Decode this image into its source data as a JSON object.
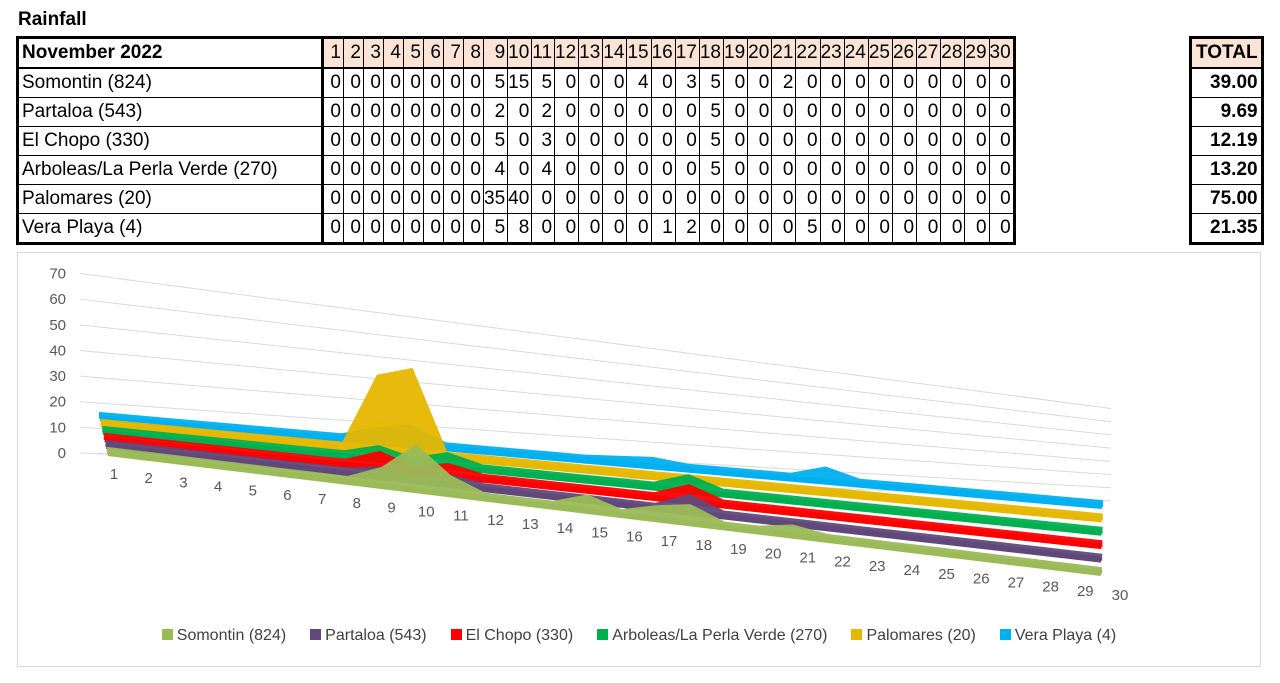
{
  "title": "Rainfall",
  "table": {
    "period": "November 2022",
    "days": [
      "1",
      "2",
      "3",
      "4",
      "5",
      "6",
      "7",
      "8",
      "9",
      "10",
      "11",
      "12",
      "13",
      "14",
      "15",
      "16",
      "17",
      "18",
      "19",
      "20",
      "21",
      "22",
      "23",
      "24",
      "25",
      "26",
      "27",
      "28",
      "29",
      "30"
    ],
    "total_header": "TOTAL",
    "rows": [
      {
        "name": "Somontin (824)",
        "values": [
          0,
          0,
          0,
          0,
          0,
          0,
          0,
          0,
          5,
          15,
          5,
          0,
          0,
          0,
          4,
          0,
          3,
          5,
          0,
          0,
          2,
          0,
          0,
          0,
          0,
          0,
          0,
          0,
          0,
          0
        ],
        "total": "39.00"
      },
      {
        "name": "Partaloa (543)",
        "values": [
          0,
          0,
          0,
          0,
          0,
          0,
          0,
          0,
          2,
          0,
          2,
          0,
          0,
          0,
          0,
          0,
          0,
          5,
          0,
          0,
          0,
          0,
          0,
          0,
          0,
          0,
          0,
          0,
          0,
          0
        ],
        "total": "9.69"
      },
      {
        "name": "El Chopo (330)",
        "values": [
          0,
          0,
          0,
          0,
          0,
          0,
          0,
          0,
          5,
          0,
          3,
          0,
          0,
          0,
          0,
          0,
          0,
          5,
          0,
          0,
          0,
          0,
          0,
          0,
          0,
          0,
          0,
          0,
          0,
          0
        ],
        "total": "12.19"
      },
      {
        "name": "Arboleas/La Perla Verde (270)",
        "values": [
          0,
          0,
          0,
          0,
          0,
          0,
          0,
          0,
          4,
          0,
          4,
          0,
          0,
          0,
          0,
          0,
          0,
          5,
          0,
          0,
          0,
          0,
          0,
          0,
          0,
          0,
          0,
          0,
          0,
          0
        ],
        "total": "13.20"
      },
      {
        "name": "Palomares (20)",
        "values": [
          0,
          0,
          0,
          0,
          0,
          0,
          0,
          0,
          35,
          40,
          0,
          0,
          0,
          0,
          0,
          0,
          0,
          0,
          0,
          0,
          0,
          0,
          0,
          0,
          0,
          0,
          0,
          0,
          0,
          0
        ],
        "total": "75.00"
      },
      {
        "name": "Vera Playa (4)",
        "values": [
          0,
          0,
          0,
          0,
          0,
          0,
          0,
          0,
          5,
          8,
          0,
          0,
          0,
          0,
          0,
          1,
          2,
          0,
          0,
          0,
          0,
          5,
          0,
          0,
          0,
          0,
          0,
          0,
          0,
          0
        ],
        "total": "21.35"
      }
    ]
  },
  "chart_data": {
    "type": "area",
    "title": "",
    "xlabel": "",
    "ylabel": "",
    "ylim": [
      0,
      70
    ],
    "yticks": [
      "0",
      "10",
      "20",
      "30",
      "40",
      "50",
      "60",
      "70"
    ],
    "categories": [
      "1",
      "2",
      "3",
      "4",
      "5",
      "6",
      "7",
      "8",
      "9",
      "10",
      "11",
      "12",
      "13",
      "14",
      "15",
      "16",
      "17",
      "18",
      "19",
      "20",
      "21",
      "22",
      "23",
      "24",
      "25",
      "26",
      "27",
      "28",
      "29",
      "30"
    ],
    "grid": true,
    "legend_position": "bottom",
    "series": [
      {
        "name": "Somontin (824)",
        "color": "#9bbb59",
        "values": [
          0,
          0,
          0,
          0,
          0,
          0,
          0,
          0,
          5,
          15,
          5,
          0,
          0,
          0,
          4,
          0,
          3,
          5,
          0,
          0,
          2,
          0,
          0,
          0,
          0,
          0,
          0,
          0,
          0,
          0
        ]
      },
      {
        "name": "Partaloa (543)",
        "color": "#60497a",
        "values": [
          0,
          0,
          0,
          0,
          0,
          0,
          0,
          0,
          2,
          0,
          2,
          0,
          0,
          0,
          0,
          0,
          0,
          5,
          0,
          0,
          0,
          0,
          0,
          0,
          0,
          0,
          0,
          0,
          0,
          0
        ]
      },
      {
        "name": "El Chopo (330)",
        "color": "#ff0000",
        "values": [
          0,
          0,
          0,
          0,
          0,
          0,
          0,
          0,
          5,
          0,
          3,
          0,
          0,
          0,
          0,
          0,
          0,
          5,
          0,
          0,
          0,
          0,
          0,
          0,
          0,
          0,
          0,
          0,
          0,
          0
        ]
      },
      {
        "name": "Arboleas/La Perla Verde (270)",
        "color": "#00b050",
        "values": [
          0,
          0,
          0,
          0,
          0,
          0,
          0,
          0,
          4,
          0,
          4,
          0,
          0,
          0,
          0,
          0,
          0,
          5,
          0,
          0,
          0,
          0,
          0,
          0,
          0,
          0,
          0,
          0,
          0,
          0
        ]
      },
      {
        "name": "Palomares (20)",
        "color": "#e6b800",
        "values": [
          0,
          0,
          0,
          0,
          0,
          0,
          0,
          0,
          35,
          40,
          0,
          0,
          0,
          0,
          0,
          0,
          0,
          0,
          0,
          0,
          0,
          0,
          0,
          0,
          0,
          0,
          0,
          0,
          0,
          0
        ]
      },
      {
        "name": "Vera Playa (4)",
        "color": "#00b0f0",
        "values": [
          0,
          0,
          0,
          0,
          0,
          0,
          0,
          0,
          5,
          8,
          0,
          0,
          0,
          0,
          0,
          1,
          2,
          0,
          0,
          0,
          0,
          5,
          0,
          0,
          0,
          0,
          0,
          0,
          0,
          0
        ]
      }
    ]
  }
}
